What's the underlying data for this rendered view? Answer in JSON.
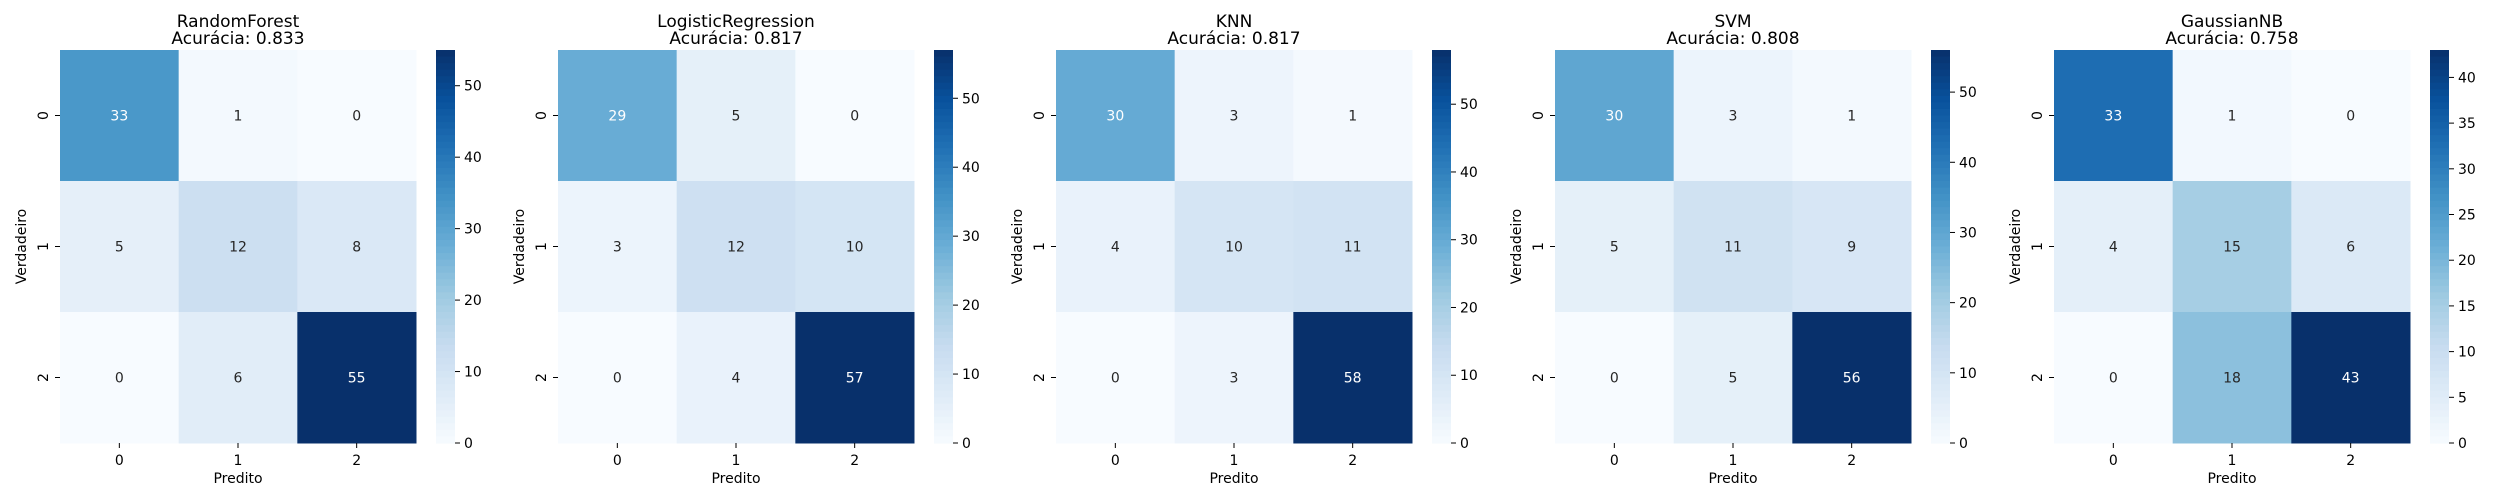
{
  "chart_data": [
    {
      "type": "heatmap",
      "title": "RandomForest",
      "subtitle": "Acurácia: 0.833",
      "xlabel": "Predito",
      "ylabel": "Verdadeiro",
      "x_categories": [
        "0",
        "1",
        "2"
      ],
      "y_categories": [
        "0",
        "1",
        "2"
      ],
      "values": [
        [
          33,
          1,
          0
        ],
        [
          5,
          12,
          8
        ],
        [
          0,
          6,
          55
        ]
      ],
      "colormap": "Blues",
      "colorbar": {
        "min": 0,
        "max": 55,
        "ticks": [
          0,
          10,
          20,
          30,
          40,
          50
        ]
      }
    },
    {
      "type": "heatmap",
      "title": "LogisticRegression",
      "subtitle": "Acurácia: 0.817",
      "xlabel": "Predito",
      "ylabel": "Verdadeiro",
      "x_categories": [
        "0",
        "1",
        "2"
      ],
      "y_categories": [
        "0",
        "1",
        "2"
      ],
      "values": [
        [
          29,
          5,
          0
        ],
        [
          3,
          12,
          10
        ],
        [
          0,
          4,
          57
        ]
      ],
      "colormap": "Blues",
      "colorbar": {
        "min": 0,
        "max": 57,
        "ticks": [
          0,
          10,
          20,
          30,
          40,
          50
        ]
      }
    },
    {
      "type": "heatmap",
      "title": "KNN",
      "subtitle": "Acurácia: 0.817",
      "xlabel": "Predito",
      "ylabel": "Verdadeiro",
      "x_categories": [
        "0",
        "1",
        "2"
      ],
      "y_categories": [
        "0",
        "1",
        "2"
      ],
      "values": [
        [
          30,
          3,
          1
        ],
        [
          4,
          10,
          11
        ],
        [
          0,
          3,
          58
        ]
      ],
      "colormap": "Blues",
      "colorbar": {
        "min": 0,
        "max": 58,
        "ticks": [
          0,
          10,
          20,
          30,
          40,
          50
        ]
      }
    },
    {
      "type": "heatmap",
      "title": "SVM",
      "subtitle": "Acurácia: 0.808",
      "xlabel": "Predito",
      "ylabel": "Verdadeiro",
      "x_categories": [
        "0",
        "1",
        "2"
      ],
      "y_categories": [
        "0",
        "1",
        "2"
      ],
      "values": [
        [
          30,
          3,
          1
        ],
        [
          5,
          11,
          9
        ],
        [
          0,
          5,
          56
        ]
      ],
      "colormap": "Blues",
      "colorbar": {
        "min": 0,
        "max": 56,
        "ticks": [
          0,
          10,
          20,
          30,
          40,
          50
        ]
      }
    },
    {
      "type": "heatmap",
      "title": "GaussianNB",
      "subtitle": "Acurácia: 0.758",
      "xlabel": "Predito",
      "ylabel": "Verdadeiro",
      "x_categories": [
        "0",
        "1",
        "2"
      ],
      "y_categories": [
        "0",
        "1",
        "2"
      ],
      "values": [
        [
          33,
          1,
          0
        ],
        [
          4,
          15,
          6
        ],
        [
          0,
          18,
          43
        ]
      ],
      "colormap": "Blues",
      "colorbar": {
        "min": 0,
        "max": 43,
        "ticks": [
          0,
          5,
          10,
          15,
          20,
          25,
          30,
          35,
          40
        ]
      }
    }
  ]
}
